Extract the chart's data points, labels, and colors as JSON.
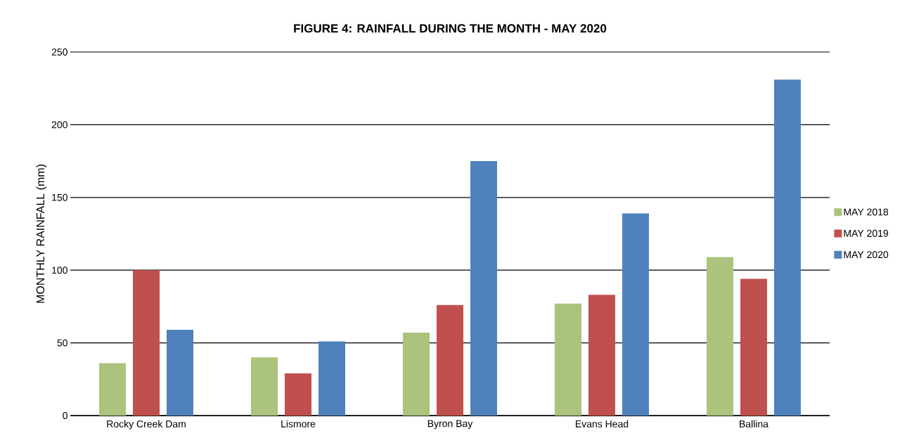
{
  "chart_data": {
    "type": "bar",
    "title": "FIGURE 4: RAINFALL DURING THE MONTH - MAY 2020",
    "ylabel": "MONTHLY RAINFALL (mm)",
    "categories": [
      "Rocky Creek Dam",
      "Lismore",
      "Byron Bay",
      "Evans Head",
      "Ballina"
    ],
    "series": [
      {
        "name": "MAY 2018",
        "color": "#abc37c",
        "values": [
          36,
          40,
          57,
          77,
          109
        ]
      },
      {
        "name": "MAY 2019",
        "color": "#c0504d",
        "values": [
          100,
          29,
          76,
          83,
          94
        ]
      },
      {
        "name": "MAY 2020",
        "color": "#4f81bd",
        "values": [
          59,
          51,
          175,
          139,
          231
        ]
      }
    ],
    "ylim": [
      0,
      250
    ],
    "yticks": [
      0,
      50,
      100,
      150,
      200,
      250
    ],
    "grid": "y",
    "legend": "right"
  }
}
